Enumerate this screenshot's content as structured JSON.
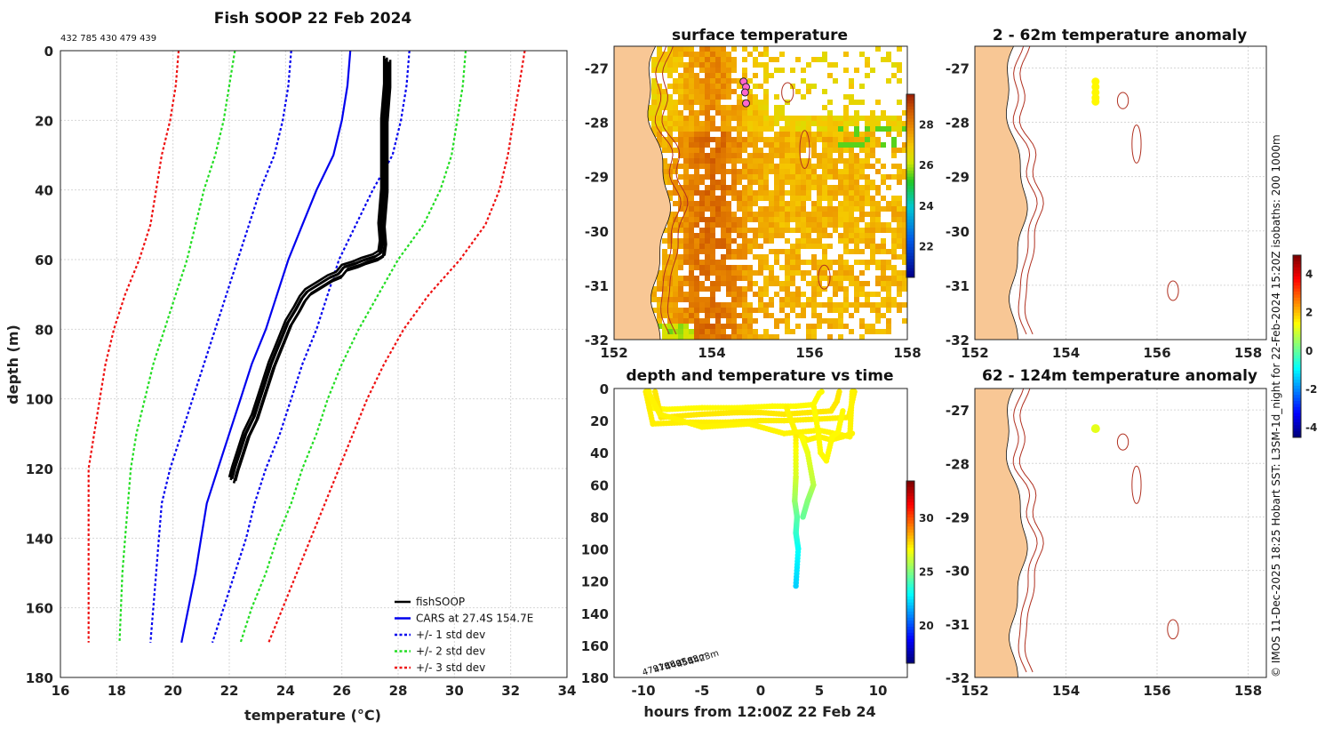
{
  "page_title": "Fish SOOP 22 Feb 2024",
  "ids_text": "432 785 430 479 439",
  "side_note": "© IMOS 11-Dec-2025 18:25 Hobart SST: L3SM-1d_night for 22-Feb-2024 15:20Z isobaths: 200  1000m",
  "colors": {
    "fishsoop": "#000000",
    "cars": "#0000ee",
    "std1": "#0000ee",
    "std2": "#22dd22",
    "std3": "#ee1111",
    "land": "#f8c795",
    "coast_iso": "#b03020"
  },
  "chart_data": [
    {
      "id": "profile",
      "type": "line",
      "title": "",
      "xlabel": "temperature (°C)",
      "ylabel": "depth (m)",
      "xlim": [
        16,
        34
      ],
      "ylim": [
        0,
        180
      ],
      "xticks": [
        16,
        18,
        20,
        22,
        24,
        26,
        28,
        30,
        32,
        34
      ],
      "yticks": [
        0,
        20,
        40,
        60,
        80,
        100,
        120,
        140,
        160,
        180
      ],
      "legend": [
        "fishSOOP",
        "CARS at 27.4S 154.7E",
        "+/- 1 std dev",
        "+/- 2 std dev",
        "+/- 3 std dev"
      ],
      "depths": [
        0,
        10,
        20,
        30,
        40,
        50,
        60,
        70,
        80,
        90,
        100,
        110,
        120,
        130,
        140,
        150,
        160,
        170
      ],
      "cars": [
        26.3,
        26.2,
        26.0,
        25.7,
        25.1,
        24.6,
        24.1,
        23.7,
        23.3,
        22.8,
        22.4,
        22.0,
        21.6,
        21.2,
        21.0,
        20.8,
        20.55,
        20.3
      ],
      "minus1": [
        24.2,
        24.1,
        23.9,
        23.6,
        23.1,
        22.7,
        22.3,
        21.9,
        21.5,
        21.1,
        20.7,
        20.3,
        19.9,
        19.6,
        19.5,
        19.4,
        19.3,
        19.2
      ],
      "plus1": [
        28.4,
        28.3,
        28.1,
        27.8,
        27.1,
        26.5,
        25.9,
        25.5,
        25.1,
        24.6,
        24.2,
        23.8,
        23.3,
        22.9,
        22.6,
        22.2,
        21.8,
        21.4
      ],
      "minus2": [
        22.2,
        22.0,
        21.8,
        21.5,
        21.1,
        20.8,
        20.5,
        20.1,
        19.7,
        19.3,
        19.0,
        18.7,
        18.5,
        18.4,
        18.3,
        18.2,
        18.15,
        18.1
      ],
      "plus2": [
        30.4,
        30.3,
        30.1,
        29.9,
        29.5,
        28.9,
        28.0,
        27.3,
        26.6,
        26.0,
        25.5,
        25.1,
        24.6,
        24.2,
        23.7,
        23.3,
        22.8,
        22.4
      ],
      "minus3": [
        20.2,
        20.1,
        19.9,
        19.6,
        19.4,
        19.2,
        18.8,
        18.3,
        17.9,
        17.6,
        17.4,
        17.2,
        17.0,
        17.0,
        17.0,
        17.0,
        17.0,
        17.0
      ],
      "plus3": [
        32.5,
        32.3,
        32.1,
        31.9,
        31.6,
        31.1,
        30.2,
        29.1,
        28.2,
        27.5,
        26.9,
        26.4,
        25.9,
        25.4,
        24.9,
        24.4,
        23.9,
        23.4
      ],
      "fish_depth": [
        2,
        10,
        20,
        30,
        40,
        50,
        55,
        58,
        59,
        60,
        61,
        62,
        63,
        64,
        65,
        67,
        69,
        71,
        74,
        78,
        82,
        86,
        90,
        95,
        100,
        105,
        110,
        115,
        120,
        123
      ],
      "fish_temp": [
        27.6,
        27.6,
        27.5,
        27.5,
        27.5,
        27.4,
        27.45,
        27.4,
        27.2,
        26.8,
        26.5,
        26.1,
        26.0,
        25.9,
        25.6,
        25.2,
        24.8,
        24.6,
        24.4,
        24.1,
        23.9,
        23.7,
        23.5,
        23.3,
        23.1,
        22.9,
        22.6,
        22.4,
        22.2,
        22.1
      ]
    },
    {
      "id": "surface-temperature",
      "type": "heatmap",
      "title": "surface temperature",
      "xlim": [
        152,
        158
      ],
      "ylim": [
        -32,
        -26.6
      ],
      "xticks": [
        152,
        154,
        156,
        158
      ],
      "yticks": [
        -27,
        -28,
        -29,
        -30,
        -31,
        -32
      ],
      "colorbar_ticks": [
        22,
        24,
        26,
        28
      ],
      "colorbar_range": [
        20.5,
        29.5
      ],
      "stations": [
        [
          154.65,
          -27.25
        ],
        [
          154.7,
          -27.35
        ],
        [
          154.68,
          -27.45
        ],
        [
          154.7,
          -27.65
        ]
      ]
    },
    {
      "id": "depth-time",
      "type": "scatter",
      "title": "depth and temperature vs time",
      "xlabel": "hours from 12:00Z 22 Feb 24",
      "xlim": [
        -12.5,
        12.5
      ],
      "ylim": [
        0,
        180
      ],
      "xticks": [
        -10,
        -5,
        0,
        5,
        10
      ],
      "yticks": [
        0,
        20,
        40,
        60,
        80,
        100,
        120,
        140,
        160,
        180
      ],
      "colorbar_ticks": [
        20,
        25,
        30
      ],
      "colorbar_range": [
        16.5,
        33.5
      ],
      "tracks": [
        {
          "h": [
            -9.5,
            -9.5,
            -8,
            -5,
            -2,
            1,
            3,
            4.5,
            5,
            5.2
          ],
          "d": [
            2,
            12,
            13,
            12,
            12,
            11,
            11,
            10,
            3,
            2
          ],
          "temp": 27.2
        },
        {
          "h": [
            -9,
            -8.5,
            -5,
            -2,
            0,
            2,
            4,
            6,
            6.5,
            6.7
          ],
          "d": [
            2,
            18,
            16,
            15,
            15,
            16,
            15,
            14,
            8,
            2
          ],
          "temp": 27.5
        },
        {
          "h": [
            -9.8,
            -9.2,
            -6,
            -3,
            0,
            2,
            5,
            7.5,
            8
          ],
          "d": [
            2,
            22,
            21,
            21,
            20,
            20,
            19,
            18,
            2
          ],
          "temp": 27.4
        },
        {
          "h": [
            -9.6,
            -8.6,
            -5,
            -1,
            2,
            5,
            7.6,
            7.8
          ],
          "d": [
            2,
            16,
            24,
            22,
            28,
            26,
            30,
            2
          ],
          "temp": 27.3
        },
        {
          "h": [
            2.2,
            3,
            4,
            5,
            6,
            7,
            7.8
          ],
          "d": [
            12,
            28,
            32,
            30,
            32,
            30,
            28
          ],
          "temp": 27.3
        },
        {
          "h": [
            4.5,
            4.9,
            5.1,
            5.6,
            6.1,
            6.6,
            7
          ],
          "d": [
            10,
            27,
            40,
            45,
            30,
            27,
            14
          ],
          "temp": 27.2
        }
      ],
      "dive": {
        "h": [
          3,
          3,
          2.9,
          3.1,
          3.0,
          3.2,
          3.0
        ],
        "d": [
          30,
          55,
          70,
          80,
          90,
          100,
          123
        ],
        "temp": [
          27.4,
          26.5,
          25.5,
          24.5,
          23.8,
          23.0,
          22.1
        ]
      },
      "dive_side": {
        "h": [
          3.5,
          4.0,
          4.5,
          4.0,
          3.6
        ],
        "d": [
          30,
          40,
          60,
          70,
          80
        ],
        "temp": [
          27.2,
          26.8,
          26.0,
          25.2,
          24.6
        ]
      },
      "labels": [
        "4791m",
        "4756m",
        "4495m",
        "4555m",
        "4423m"
      ]
    },
    {
      "id": "anomaly-2-62",
      "type": "scatter",
      "title": "2 - 62m temperature anomaly",
      "xlim": [
        152,
        158.4
      ],
      "ylim": [
        -32,
        -26.6
      ],
      "xticks": [
        152,
        154,
        156,
        158
      ],
      "yticks": [
        -27,
        -28,
        -29,
        -30,
        -31,
        -32
      ],
      "points": [
        [
          154.65,
          -27.25
        ],
        [
          154.65,
          -27.35
        ],
        [
          154.65,
          -27.45
        ],
        [
          154.65,
          -27.55
        ],
        [
          154.65,
          -27.62
        ]
      ],
      "value": 1.5
    },
    {
      "id": "anomaly-62-124",
      "type": "scatter",
      "title": "62 - 124m temperature anomaly",
      "xlim": [
        152,
        158.4
      ],
      "ylim": [
        -32,
        -26.6
      ],
      "xticks": [
        152,
        154,
        156,
        158
      ],
      "yticks": [
        -27,
        -28,
        -29,
        -30,
        -31,
        -32
      ],
      "points": [
        [
          154.65,
          -27.35
        ]
      ],
      "value": 1.2,
      "colorbar_ticks": [
        4,
        2,
        0,
        -2,
        -4
      ],
      "colorbar_range": [
        -4.5,
        5
      ]
    }
  ]
}
